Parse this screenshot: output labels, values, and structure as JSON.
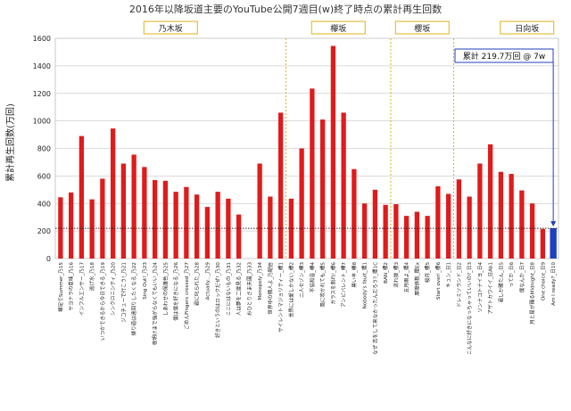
{
  "chart_data": {
    "type": "bar",
    "title": "2016年以降坂道主要のYouTube公開7週目(w)終了時点の累計再生回数",
    "ylabel": "累計再生回数(万回)",
    "ylim": [
      0,
      1600
    ],
    "yticks": [
      0,
      200,
      400,
      600,
      800,
      1000,
      1200,
      1400,
      1600
    ],
    "grid": true,
    "groups": [
      {
        "name": "乃木坂",
        "start": 0,
        "end": 21
      },
      {
        "name": "欅坂",
        "start": 22,
        "end": 31
      },
      {
        "name": "櫻坂",
        "start": 32,
        "end": 37
      },
      {
        "name": "日向坂",
        "start": 38,
        "end": 51
      }
    ],
    "categories": [
      "裸足でSummer_乃15",
      "サヨナラの意味_乃16",
      "インフルエンサー_乃17",
      "逃げ水_乃18",
      "いつかできるから今日できる_乃19",
      "シンクロニシティ_乃20",
      "ジコチューで行こう!_乃21",
      "帰り道は遠回りしたくなる_乃22",
      "Sing Out!_乃23",
      "夜明けまで強がらなくてもいい_乃24",
      "しあわせの保護色_乃25",
      "僕は僕を好きになる_乃26",
      "ごめんFingers crossed_乃27",
      "君に叱られた_乃28",
      "Actually..._乃29",
      "好きというのはロックだぜ!_乃30",
      "ここにはないもの_乃31",
      "人は夢を二度見る_乃32",
      "おひとりさま天国_乃33",
      "Monopoly_乃34",
      "世界中の隣人よ_乃配信",
      "サイレントマジョリティー_欅1",
      "世界には愛しかない_欅2",
      "二人セゾン_欅3",
      "不協和音_欅4",
      "風に吹かれても_欅5",
      "ガラスを割れ!_欅6",
      "アンビバレント_欅7",
      "黒い羊_欅8",
      "Nobody's fault_櫻1",
      "なぜ 恋をして来なかったんだろう?_櫻1C",
      "BAN_櫻2",
      "流れ弾_櫻3",
      "五月雨よ_櫻4",
      "摩擦係数_櫻Ex",
      "桜月_櫻5",
      "Start over!_櫻6",
      "キュン_日1",
      "ドレミソラシド_日2",
      "こんなに好きになっちゃっていいの?_日3",
      "ソンナコトナイヨ_日4",
      "アザトカワイイ_日Ab1",
      "君しか勝たん_日5",
      "ってか_日6",
      "僕なんか_日7",
      "月と星が踊るMidnight_日8",
      "One choice_日9",
      "Am I ready?_日10"
    ],
    "values": [
      445,
      480,
      890,
      430,
      580,
      945,
      690,
      755,
      665,
      570,
      565,
      485,
      520,
      465,
      375,
      485,
      435,
      320,
      0,
      690,
      450,
      1060,
      435,
      800,
      1235,
      1010,
      1545,
      1060,
      650,
      400,
      500,
      390,
      395,
      310,
      340,
      310,
      525,
      470,
      575,
      450,
      690,
      830,
      630,
      615,
      495,
      400,
      215,
      220
    ],
    "highlight_index": 47,
    "highlight_color": "#1f3fbf",
    "bar_color": "#e01b1b",
    "reference_value": 219.7,
    "annotation": "累計 219.7万回 @ 7w"
  }
}
